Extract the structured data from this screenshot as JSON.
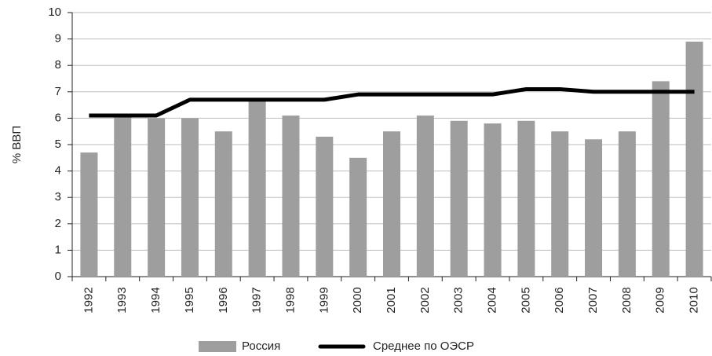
{
  "chart_data": {
    "type": "bar",
    "ylabel": "% ВВП",
    "categories": [
      "1992",
      "1993",
      "1994",
      "1995",
      "1996",
      "1997",
      "1998",
      "1999",
      "2000",
      "2001",
      "2002",
      "2003",
      "2004",
      "2005",
      "2006",
      "2007",
      "2008",
      "2009",
      "2010"
    ],
    "series": [
      {
        "name": "Россия",
        "type": "bar",
        "color": "#9e9e9e",
        "values": [
          4.7,
          6.1,
          6.0,
          6.0,
          5.5,
          6.7,
          6.1,
          5.3,
          4.5,
          5.5,
          6.1,
          5.9,
          5.8,
          5.9,
          5.5,
          5.2,
          5.5,
          7.4,
          8.9
        ]
      },
      {
        "name": "Среднее по ОЭСР",
        "type": "line",
        "color": "#000000",
        "values": [
          6.1,
          6.1,
          6.1,
          6.7,
          6.7,
          6.7,
          6.7,
          6.7,
          6.9,
          6.9,
          6.9,
          6.9,
          6.9,
          7.1,
          7.1,
          7.0,
          7.0,
          7.0,
          7.0
        ]
      }
    ],
    "ylim": [
      0,
      10
    ],
    "yticks": [
      0,
      1,
      2,
      3,
      4,
      5,
      6,
      7,
      8,
      9,
      10
    ],
    "grid": true,
    "legend": "bottom"
  }
}
